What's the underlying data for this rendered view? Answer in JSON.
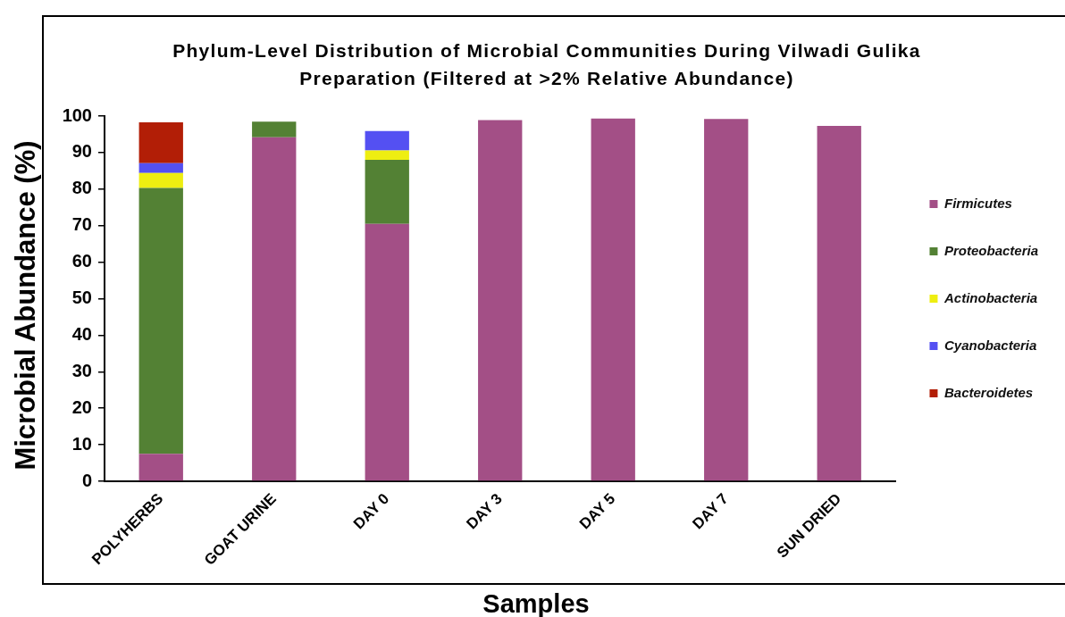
{
  "chart_data": {
    "type": "bar",
    "title": "Phylum-Level Distribution of Microbial Communities During Vilwadi Gulika Preparation (Filtered at >2% Relative Abundance)",
    "xlabel": "Samples",
    "ylabel": "Microbial Abundance (%)",
    "categories": [
      "POLYHERBS",
      "GOAT URINE",
      "DAY 0",
      "DAY 3",
      "DAY 5",
      "DAY 7",
      "SUN DRIED"
    ],
    "series": [
      {
        "name": "Firmicutes",
        "color": "#a34f86",
        "values": [
          7.5,
          94.2,
          70.5,
          98.9,
          99.3,
          99.2,
          97.3
        ]
      },
      {
        "name": "Proteobacteria",
        "color": "#538134",
        "values": [
          72.8,
          4.3,
          17.5,
          null,
          null,
          null,
          null
        ]
      },
      {
        "name": "Actinobacteria",
        "color": "#eeee11",
        "values": [
          4.1,
          null,
          2.6,
          null,
          null,
          null,
          null
        ]
      },
      {
        "name": "Cyanobacteria",
        "color": "#5450f2",
        "values": [
          2.7,
          null,
          5.3,
          null,
          null,
          null,
          null
        ]
      },
      {
        "name": "Bacteroidetes",
        "color": "#b21e06",
        "values": [
          11.2,
          null,
          null,
          null,
          null,
          null,
          null
        ]
      }
    ],
    "stacked": true,
    "ylim": [
      0,
      100
    ],
    "yticks": [
      0,
      10,
      20,
      30,
      40,
      50,
      60,
      70,
      80,
      90,
      100
    ],
    "legend": "right"
  }
}
